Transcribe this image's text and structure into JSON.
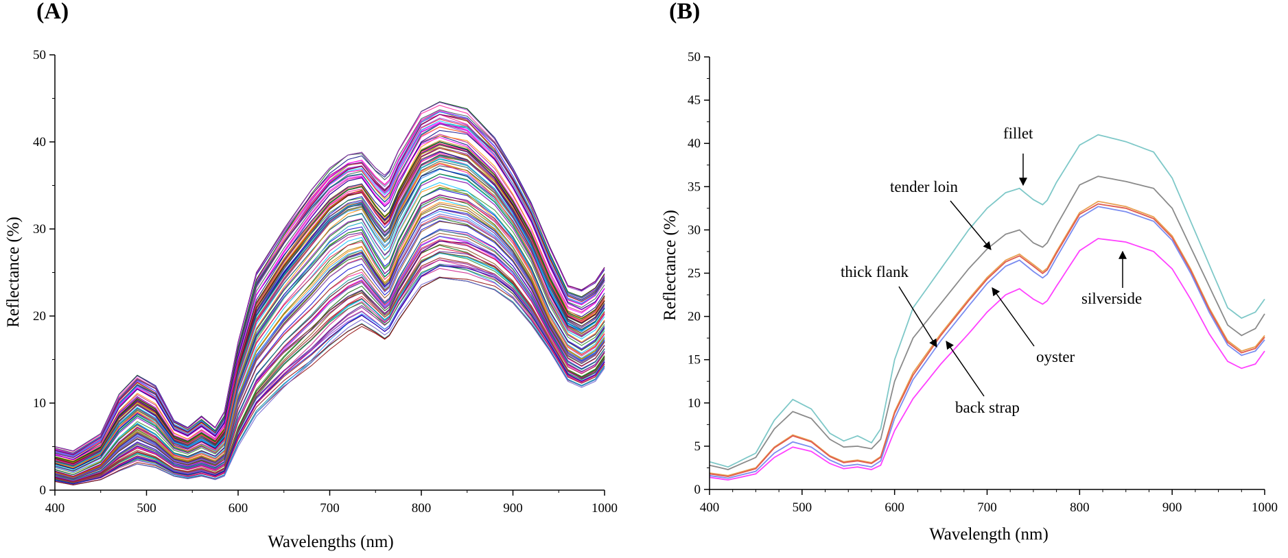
{
  "figure": {
    "panel_a_label": "(A)",
    "panel_b_label": "(B)"
  },
  "chart_data": [
    {
      "type": "line",
      "panel": "A",
      "title": "",
      "xlabel": "Wavelengths (nm)",
      "ylabel": "Reflectance (%)",
      "xlim": [
        400,
        1000
      ],
      "ylim": [
        0,
        50
      ],
      "xticks": [
        400,
        500,
        600,
        700,
        800,
        900,
        1000
      ],
      "yticks": [
        0,
        10,
        20,
        30,
        40,
        50
      ],
      "grid": false,
      "legend": "none",
      "description_series_count": 120,
      "envelope": {
        "x": [
          400,
          420,
          450,
          470,
          490,
          510,
          530,
          545,
          560,
          575,
          585,
          600,
          620,
          650,
          680,
          700,
          720,
          735,
          750,
          762,
          775,
          800,
          820,
          850,
          880,
          900,
          920,
          940,
          960,
          975,
          990,
          1000
        ],
        "upper": [
          5.0,
          4.5,
          6.5,
          11.0,
          13.2,
          12.0,
          8.0,
          7.2,
          8.5,
          7.2,
          9.0,
          17.0,
          25.0,
          30.0,
          34.5,
          37.0,
          38.5,
          38.8,
          37.0,
          36.0,
          39.0,
          43.5,
          44.6,
          43.8,
          40.5,
          37.0,
          33.0,
          28.0,
          23.5,
          23.0,
          24.0,
          25.6
        ],
        "mean": [
          2.2,
          1.6,
          3.0,
          5.5,
          7.2,
          6.0,
          4.0,
          3.6,
          4.2,
          3.6,
          4.5,
          11.5,
          17.0,
          21.5,
          25.0,
          27.5,
          29.0,
          29.4,
          26.5,
          24.5,
          28.0,
          33.0,
          34.0,
          33.3,
          31.0,
          28.5,
          25.0,
          20.0,
          16.5,
          15.5,
          16.5,
          18.0
        ],
        "lower": [
          1.0,
          0.6,
          1.2,
          2.2,
          3.0,
          2.6,
          1.6,
          1.3,
          1.6,
          1.2,
          1.6,
          5.0,
          8.5,
          11.5,
          14.0,
          16.0,
          17.8,
          18.8,
          18.0,
          17.2,
          19.5,
          23.3,
          24.4,
          24.0,
          23.0,
          21.5,
          19.0,
          16.0,
          12.5,
          11.8,
          12.5,
          14.0
        ]
      }
    },
    {
      "type": "line",
      "panel": "B",
      "title": "",
      "xlabel": "Wavelength (nm)",
      "ylabel": "Reflectance (%)",
      "xlim": [
        400,
        1000
      ],
      "ylim": [
        0,
        50
      ],
      "xticks": [
        400,
        500,
        600,
        700,
        800,
        900,
        1000
      ],
      "yticks": [
        0,
        5,
        10,
        15,
        20,
        25,
        30,
        35,
        40,
        45,
        50
      ],
      "grid": false,
      "legend": "annotations",
      "x": [
        400,
        420,
        450,
        470,
        490,
        510,
        530,
        545,
        560,
        575,
        585,
        600,
        620,
        650,
        680,
        700,
        720,
        735,
        750,
        762,
        775,
        800,
        820,
        850,
        880,
        900,
        920,
        940,
        960,
        975,
        990,
        1000
      ],
      "series": [
        {
          "name": "fillet",
          "color": "#7ec8c8",
          "values": [
            3.2,
            2.6,
            4.2,
            8.0,
            10.4,
            9.3,
            6.5,
            5.6,
            6.2,
            5.4,
            7.0,
            15.0,
            21.0,
            25.5,
            30.0,
            32.5,
            34.3,
            34.8,
            33.5,
            32.8,
            35.5,
            39.8,
            41.0,
            40.2,
            39.0,
            36.0,
            31.0,
            26.0,
            21.0,
            19.8,
            20.5,
            22.0
          ]
        },
        {
          "name": "tender loin",
          "color": "#8a8a8a",
          "values": [
            2.8,
            2.3,
            3.7,
            7.0,
            9.0,
            8.2,
            5.8,
            4.9,
            5.0,
            4.7,
            5.8,
            12.5,
            17.5,
            21.5,
            25.5,
            27.8,
            29.5,
            30.0,
            28.5,
            27.9,
            30.5,
            35.2,
            36.2,
            35.6,
            34.8,
            32.5,
            28.0,
            23.5,
            19.0,
            17.8,
            18.6,
            20.3
          ]
        },
        {
          "name": "thick flank",
          "color": "#e8a050",
          "values": [
            1.9,
            1.6,
            2.5,
            4.9,
            6.3,
            5.6,
            3.9,
            3.2,
            3.4,
            3.1,
            3.8,
            9.0,
            13.5,
            18.0,
            22.0,
            24.5,
            26.5,
            27.2,
            26.0,
            25.0,
            27.5,
            32.0,
            33.3,
            32.7,
            31.5,
            29.3,
            25.5,
            21.0,
            17.2,
            16.0,
            16.5,
            17.8
          ]
        },
        {
          "name": "oyster",
          "color": "#e05a50",
          "values": [
            1.8,
            1.5,
            2.4,
            4.8,
            6.2,
            5.5,
            3.8,
            3.1,
            3.3,
            3.0,
            3.7,
            8.8,
            13.2,
            17.8,
            21.8,
            24.3,
            26.3,
            27.0,
            25.8,
            24.8,
            27.3,
            31.8,
            33.0,
            32.5,
            31.3,
            29.1,
            25.3,
            20.8,
            17.0,
            15.8,
            16.3,
            17.6
          ]
        },
        {
          "name": "back strap",
          "color": "#7a8cf0",
          "values": [
            1.6,
            1.3,
            2.1,
            4.2,
            5.5,
            4.9,
            3.4,
            2.7,
            2.9,
            2.6,
            3.3,
            8.2,
            12.7,
            17.2,
            21.2,
            23.8,
            25.8,
            26.5,
            25.2,
            24.3,
            26.8,
            31.4,
            32.7,
            32.1,
            31.0,
            28.8,
            25.0,
            20.5,
            16.7,
            15.5,
            16.0,
            17.3
          ]
        },
        {
          "name": "silverside",
          "color": "#ff40ff",
          "values": [
            1.4,
            1.1,
            1.8,
            3.7,
            4.9,
            4.4,
            3.0,
            2.4,
            2.6,
            2.3,
            2.8,
            6.8,
            10.5,
            14.5,
            18.0,
            20.5,
            22.5,
            23.2,
            22.0,
            21.3,
            23.5,
            27.6,
            29.0,
            28.6,
            27.5,
            25.5,
            22.0,
            18.0,
            14.8,
            14.0,
            14.5,
            16.0
          ]
        }
      ],
      "annotations": [
        {
          "label": "fillet",
          "points_to": "fillet"
        },
        {
          "label": "tender loin",
          "points_to": "tender loin"
        },
        {
          "label": "thick flank",
          "points_to": "thick flank"
        },
        {
          "label": "back strap",
          "points_to": "back strap"
        },
        {
          "label": "oyster",
          "points_to": "oyster"
        },
        {
          "label": "silverside",
          "points_to": "silverside"
        }
      ]
    }
  ]
}
